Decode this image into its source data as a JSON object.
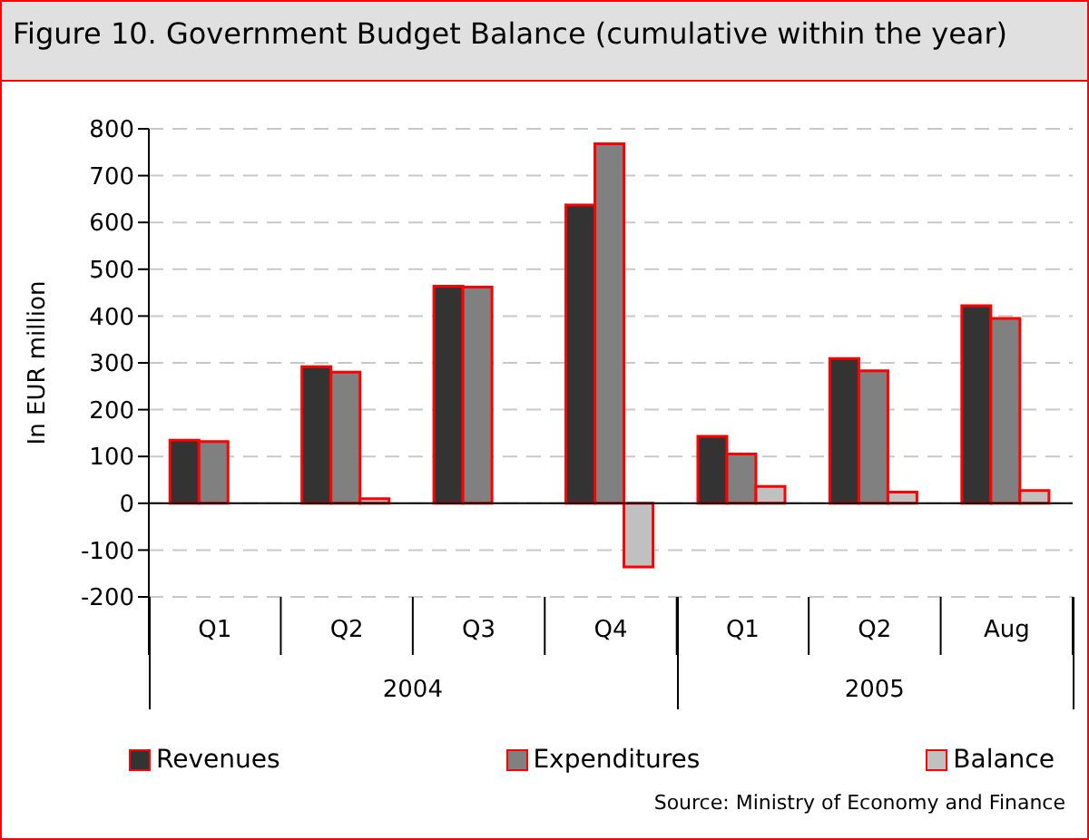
{
  "chart_data": {
    "type": "bar",
    "title": "Figure 10. Government Budget Balance (cumulative within the year)",
    "ylabel": "In EUR  million",
    "categories": [
      "Q1",
      "Q2",
      "Q3",
      "Q4",
      "Q1",
      "Q2",
      "Aug"
    ],
    "series": [
      {
        "name": "Revenues",
        "color": "#333333",
        "values": [
          135,
          292,
          464,
          637,
          143,
          309,
          422
        ]
      },
      {
        "name": "Expenditures",
        "color": "#808080",
        "values": [
          132,
          280,
          462,
          768,
          105,
          283,
          395
        ]
      },
      {
        "name": "Balance",
        "color": "#c0c0c0",
        "values": [
          null,
          10,
          null,
          -136,
          36,
          24,
          27
        ]
      }
    ],
    "ylim": [
      -200,
      800
    ],
    "yticks": [
      -200,
      -100,
      0,
      100,
      200,
      300,
      400,
      500,
      600,
      700,
      800
    ],
    "grid": "y",
    "legend": "bottom",
    "annotations": [
      "2004",
      "2005",
      "Source: Ministry of Economy and Finance"
    ]
  }
}
